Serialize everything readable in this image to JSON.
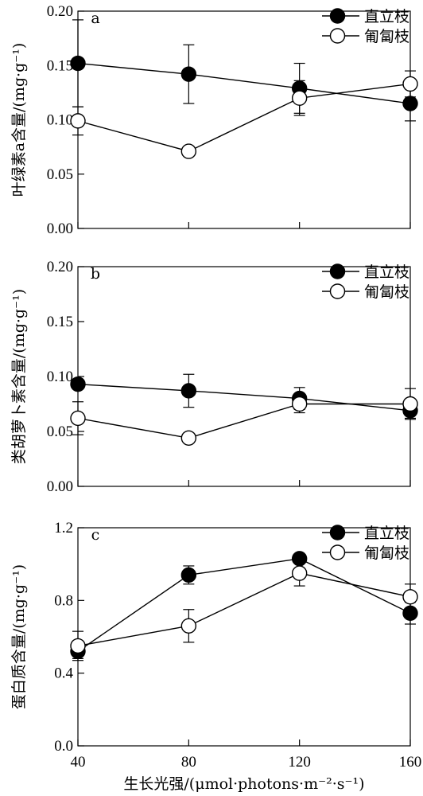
{
  "chart_data": [
    {
      "type": "line",
      "panel": "a",
      "ylabel": "叶绿素a含量/(mg·g⁻¹)",
      "ylim": [
        0,
        0.2
      ],
      "yticks": [
        "0.00",
        "0.05",
        "0.10",
        "0.15",
        "0.20"
      ],
      "x": [
        40,
        80,
        120,
        160
      ],
      "legend_position": "top-right",
      "series": [
        {
          "name": "直立枝",
          "marker": "filled-circle",
          "values": [
            0.152,
            0.142,
            0.129,
            0.115
          ],
          "errors": [
            0.04,
            0.027,
            0.023,
            0.016
          ]
        },
        {
          "name": "匍匐枝",
          "marker": "open-circle",
          "values": [
            0.099,
            0.071,
            0.12,
            0.133
          ],
          "errors": [
            0.013,
            0.0,
            0.016,
            0.012
          ]
        }
      ]
    },
    {
      "type": "line",
      "panel": "b",
      "ylabel": "类胡萝卜素含量/(mg·g⁻¹)",
      "ylim": [
        0,
        0.2
      ],
      "yticks": [
        "0.00",
        "0.05",
        "0.10",
        "0.15",
        "0.20"
      ],
      "x": [
        40,
        80,
        120,
        160
      ],
      "legend_position": "top-right",
      "series": [
        {
          "name": "直立枝",
          "marker": "filled-circle",
          "values": [
            0.093,
            0.087,
            0.08,
            0.069
          ],
          "errors": [
            0.0,
            0.015,
            0.01,
            0.007
          ]
        },
        {
          "name": "匍匐枝",
          "marker": "open-circle",
          "values": [
            0.062,
            0.044,
            0.075,
            0.075
          ],
          "errors": [
            0.015,
            0.0,
            0.008,
            0.014
          ]
        }
      ]
    },
    {
      "type": "line",
      "panel": "c",
      "ylabel": "蛋白质含量/(mg·g⁻¹)",
      "xlabel": "生长光强/(μmol·photons·m⁻²·s⁻¹)",
      "ylim": [
        0,
        1.2
      ],
      "yticks": [
        "0.0",
        "0.4",
        "0.8",
        "1.2"
      ],
      "xticks": [
        "40",
        "80",
        "120",
        "160"
      ],
      "x": [
        40,
        80,
        120,
        160
      ],
      "legend_position": "top-right",
      "series": [
        {
          "name": "直立枝",
          "marker": "filled-circle",
          "values": [
            0.52,
            0.94,
            1.03,
            0.73
          ],
          "errors": [
            0.04,
            0.05,
            0.0,
            0.06
          ]
        },
        {
          "name": "匍匐枝",
          "marker": "open-circle",
          "values": [
            0.55,
            0.66,
            0.95,
            0.82
          ],
          "errors": [
            0.08,
            0.09,
            0.07,
            0.07
          ]
        }
      ]
    }
  ]
}
